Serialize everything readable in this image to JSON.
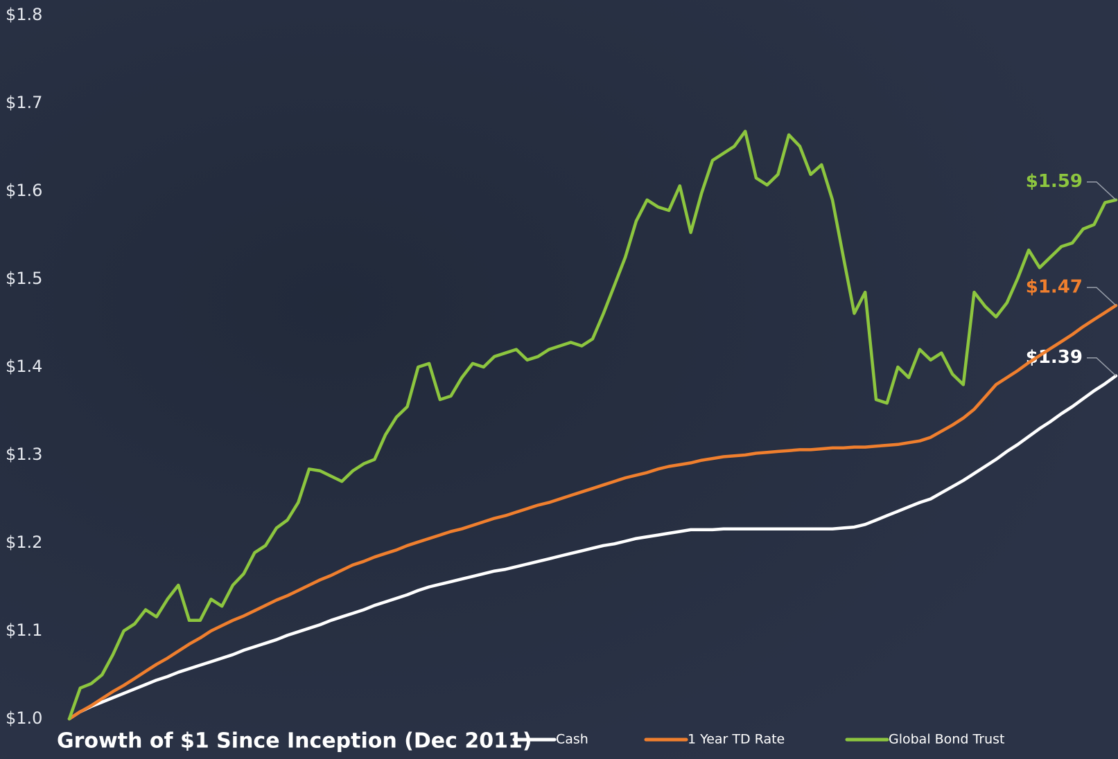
{
  "chart_data": {
    "type": "line",
    "title": "Growth of $1 Since Inception (Dec 2011)",
    "ylim": [
      1.0,
      1.8
    ],
    "yticks": [
      {
        "value": 1.0,
        "label": "$1.0"
      },
      {
        "value": 1.1,
        "label": "$1.1"
      },
      {
        "value": 1.2,
        "label": "$1.2"
      },
      {
        "value": 1.3,
        "label": "$1.3"
      },
      {
        "value": 1.4,
        "label": "$1.4"
      },
      {
        "value": 1.5,
        "label": "$1.5"
      },
      {
        "value": 1.6,
        "label": "$1.6"
      },
      {
        "value": 1.7,
        "label": "$1.7"
      },
      {
        "value": 1.8,
        "label": "$1.8"
      }
    ],
    "grid": false,
    "legend": "bottom",
    "series": [
      {
        "name": "Cash",
        "color": "#ffffff",
        "values": [
          1.0,
          1.008,
          1.014,
          1.019,
          1.024,
          1.029,
          1.034,
          1.039,
          1.044,
          1.048,
          1.053,
          1.057,
          1.061,
          1.065,
          1.069,
          1.073,
          1.078,
          1.082,
          1.086,
          1.09,
          1.095,
          1.099,
          1.103,
          1.107,
          1.112,
          1.116,
          1.12,
          1.124,
          1.129,
          1.133,
          1.137,
          1.141,
          1.146,
          1.15,
          1.153,
          1.156,
          1.159,
          1.162,
          1.165,
          1.168,
          1.17,
          1.173,
          1.176,
          1.179,
          1.182,
          1.185,
          1.188,
          1.191,
          1.194,
          1.197,
          1.199,
          1.202,
          1.205,
          1.207,
          1.209,
          1.211,
          1.213,
          1.215,
          1.215,
          1.215,
          1.216,
          1.216,
          1.216,
          1.216,
          1.216,
          1.216,
          1.216,
          1.216,
          1.216,
          1.216,
          1.216,
          1.217,
          1.218,
          1.221,
          1.226,
          1.231,
          1.236,
          1.241,
          1.246,
          1.25,
          1.257,
          1.264,
          1.271,
          1.279,
          1.287,
          1.295,
          1.304,
          1.312,
          1.321,
          1.33,
          1.338,
          1.347,
          1.355,
          1.364,
          1.373,
          1.381,
          1.39
        ],
        "value_labels": [
          null,
          null,
          null,
          null,
          null,
          null,
          null,
          null,
          null,
          null,
          null,
          null,
          null,
          null,
          null,
          null,
          null,
          null,
          null,
          null,
          null,
          null,
          null,
          null,
          null,
          null,
          null,
          null,
          null,
          null,
          null,
          null,
          null,
          null,
          null,
          null,
          null,
          null,
          null,
          null,
          null,
          null,
          null,
          null,
          null,
          null,
          null,
          null,
          null,
          null,
          null,
          null,
          null,
          null,
          null,
          null,
          null,
          null,
          null,
          null,
          null,
          null,
          null,
          null,
          null,
          null,
          null,
          null,
          null,
          null,
          null,
          null,
          null,
          null,
          null,
          null,
          null,
          null,
          null,
          null,
          null,
          null,
          null,
          null,
          null,
          null,
          null,
          null,
          null,
          null,
          null,
          null,
          null,
          null,
          null,
          null,
          "$1.39"
        ]
      },
      {
        "name": "1 Year TD Rate",
        "color": "#f07f2e",
        "values": [
          1.0,
          1.008,
          1.015,
          1.023,
          1.031,
          1.038,
          1.046,
          1.054,
          1.062,
          1.069,
          1.077,
          1.085,
          1.092,
          1.1,
          1.106,
          1.112,
          1.117,
          1.123,
          1.129,
          1.135,
          1.14,
          1.146,
          1.152,
          1.158,
          1.163,
          1.169,
          1.175,
          1.179,
          1.184,
          1.188,
          1.192,
          1.197,
          1.201,
          1.205,
          1.209,
          1.213,
          1.216,
          1.22,
          1.224,
          1.228,
          1.231,
          1.235,
          1.239,
          1.243,
          1.246,
          1.25,
          1.254,
          1.258,
          1.262,
          1.266,
          1.27,
          1.274,
          1.277,
          1.28,
          1.284,
          1.287,
          1.289,
          1.291,
          1.294,
          1.296,
          1.298,
          1.299,
          1.3,
          1.302,
          1.303,
          1.304,
          1.305,
          1.306,
          1.306,
          1.307,
          1.308,
          1.308,
          1.309,
          1.309,
          1.31,
          1.311,
          1.312,
          1.314,
          1.316,
          1.32,
          1.327,
          1.334,
          1.342,
          1.352,
          1.366,
          1.38,
          1.388,
          1.396,
          1.405,
          1.413,
          1.421,
          1.429,
          1.437,
          1.446,
          1.454,
          1.462,
          1.47
        ],
        "value_labels": [
          null,
          null,
          null,
          null,
          null,
          null,
          null,
          null,
          null,
          null,
          null,
          null,
          null,
          null,
          null,
          null,
          null,
          null,
          null,
          null,
          null,
          null,
          null,
          null,
          null,
          null,
          null,
          null,
          null,
          null,
          null,
          null,
          null,
          null,
          null,
          null,
          null,
          null,
          null,
          null,
          null,
          null,
          null,
          null,
          null,
          null,
          null,
          null,
          null,
          null,
          null,
          null,
          null,
          null,
          null,
          null,
          null,
          null,
          null,
          null,
          null,
          null,
          null,
          null,
          null,
          null,
          null,
          null,
          null,
          null,
          null,
          null,
          null,
          null,
          null,
          null,
          null,
          null,
          null,
          null,
          null,
          null,
          null,
          null,
          null,
          null,
          null,
          null,
          null,
          null,
          null,
          null,
          null,
          null,
          null,
          null,
          "$1.47"
        ]
      },
      {
        "name": "Global Bond Trust",
        "color": "#8dc63f",
        "values": [
          1.0,
          1.035,
          1.04,
          1.05,
          1.073,
          1.1,
          1.108,
          1.124,
          1.116,
          1.136,
          1.152,
          1.112,
          1.112,
          1.136,
          1.128,
          1.152,
          1.165,
          1.189,
          1.197,
          1.217,
          1.226,
          1.246,
          1.284,
          1.282,
          1.276,
          1.27,
          1.282,
          1.29,
          1.295,
          1.323,
          1.343,
          1.355,
          1.4,
          1.404,
          1.363,
          1.367,
          1.388,
          1.404,
          1.4,
          1.412,
          1.416,
          1.42,
          1.408,
          1.412,
          1.42,
          1.424,
          1.428,
          1.424,
          1.432,
          1.461,
          1.493,
          1.525,
          1.566,
          1.59,
          1.582,
          1.578,
          1.606,
          1.553,
          1.598,
          1.635,
          1.643,
          1.651,
          1.668,
          1.615,
          1.607,
          1.619,
          1.664,
          1.651,
          1.619,
          1.63,
          1.59,
          1.525,
          1.461,
          1.485,
          1.363,
          1.359,
          1.4,
          1.388,
          1.42,
          1.408,
          1.416,
          1.392,
          1.38,
          1.485,
          1.469,
          1.457,
          1.473,
          1.501,
          1.533,
          1.513,
          1.525,
          1.537,
          1.541,
          1.557,
          1.562,
          1.587,
          1.59
        ],
        "value_labels": [
          null,
          null,
          null,
          null,
          null,
          null,
          null,
          null,
          null,
          null,
          null,
          null,
          null,
          null,
          null,
          null,
          null,
          null,
          null,
          null,
          null,
          null,
          null,
          null,
          null,
          null,
          null,
          null,
          null,
          null,
          null,
          null,
          null,
          null,
          null,
          null,
          null,
          null,
          null,
          null,
          null,
          null,
          null,
          null,
          null,
          null,
          null,
          null,
          null,
          null,
          null,
          null,
          null,
          null,
          null,
          null,
          null,
          null,
          null,
          null,
          null,
          null,
          null,
          null,
          null,
          null,
          null,
          null,
          null,
          null,
          null,
          null,
          null,
          null,
          null,
          null,
          null,
          null,
          null,
          null,
          null,
          null,
          null,
          null,
          null,
          null,
          null,
          null,
          null,
          null,
          null,
          null,
          null,
          null,
          null,
          null,
          "$1.59"
        ]
      }
    ]
  }
}
